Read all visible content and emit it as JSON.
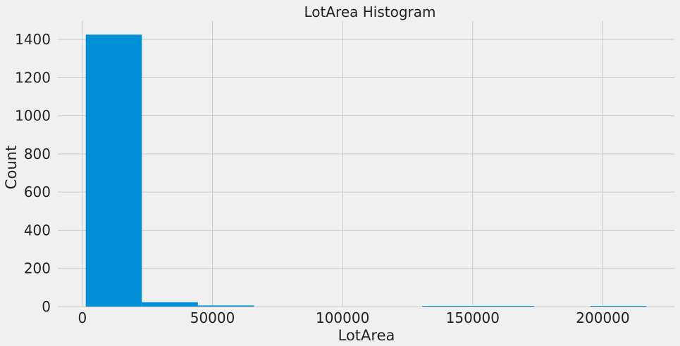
{
  "chart_data": {
    "type": "bar",
    "title": "LotArea Histogram",
    "xlabel": "LotArea",
    "ylabel": "Count",
    "bins": [
      {
        "start": 1300,
        "end": 22845,
        "count": 1425
      },
      {
        "start": 22845,
        "end": 44391,
        "count": 23
      },
      {
        "start": 44391,
        "end": 65936,
        "count": 6
      },
      {
        "start": 65936,
        "end": 87482,
        "count": 0
      },
      {
        "start": 87482,
        "end": 109027,
        "count": 0
      },
      {
        "start": 109027,
        "end": 130573,
        "count": 0
      },
      {
        "start": 130573,
        "end": 152118,
        "count": 1
      },
      {
        "start": 152118,
        "end": 173664,
        "count": 2
      },
      {
        "start": 173664,
        "end": 195209,
        "count": 0
      },
      {
        "start": 195209,
        "end": 216755,
        "count": 1
      }
    ],
    "xlim": [
      -9450,
      227500
    ],
    "ylim": [
      0,
      1496
    ],
    "x_ticks": [
      0,
      50000,
      100000,
      150000,
      200000
    ],
    "x_tick_labels": [
      "0",
      "50000",
      "100000",
      "150000",
      "200000"
    ],
    "y_ticks": [
      0,
      200,
      400,
      600,
      800,
      1000,
      1200,
      1400
    ],
    "y_tick_labels": [
      "0",
      "200",
      "400",
      "600",
      "800",
      "1000",
      "1200",
      "1400"
    ],
    "bar_color": "#008fd5",
    "grid": true,
    "background": "#f0f0f0"
  }
}
